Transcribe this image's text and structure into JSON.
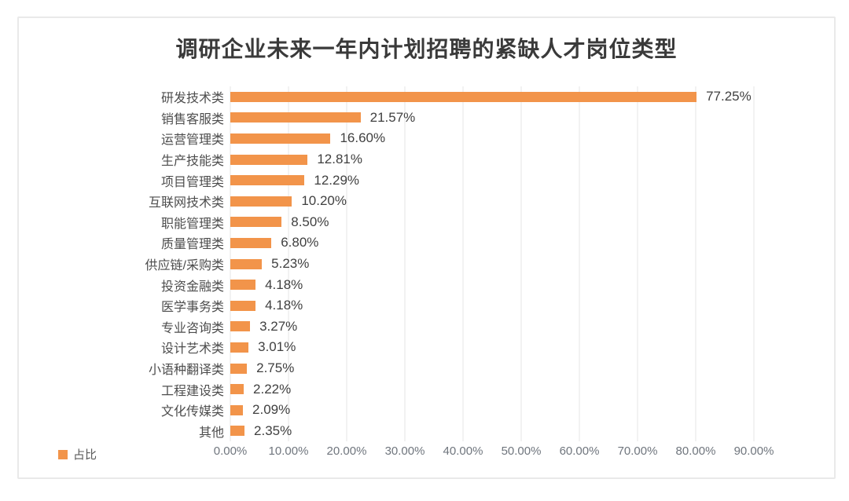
{
  "chart_data": {
    "type": "bar",
    "orientation": "horizontal",
    "title": "调研企业未来一年内计划招聘的紧缺人才岗位类型",
    "categories": [
      "研发技术类",
      "销售客服类",
      "运营管理类",
      "生产技能类",
      "项目管理类",
      "互联网技术类",
      "职能管理类",
      "质量管理类",
      "供应链/采购类",
      "投资金融类",
      "医学事务类",
      "专业咨询类",
      "设计艺术类",
      "小语种翻译类",
      "工程建设类",
      "文化传媒类",
      "其他"
    ],
    "values": [
      77.25,
      21.57,
      16.6,
      12.81,
      12.29,
      10.2,
      8.5,
      6.8,
      5.23,
      4.18,
      4.18,
      3.27,
      3.01,
      2.75,
      2.22,
      2.09,
      2.35
    ],
    "value_labels": [
      "77.25%",
      "21.57%",
      "16.60%",
      "12.81%",
      "12.29%",
      "10.20%",
      "8.50%",
      "6.80%",
      "5.23%",
      "4.18%",
      "4.18%",
      "3.27%",
      "3.01%",
      "2.75%",
      "2.22%",
      "2.09%",
      "2.35%"
    ],
    "series_name": "占比",
    "xlabel": "",
    "ylabel": "",
    "xlim": [
      0,
      90
    ],
    "x_ticks": [
      "0.00%",
      "10.00%",
      "20.00%",
      "30.00%",
      "40.00%",
      "50.00%",
      "60.00%",
      "70.00%",
      "80.00%",
      "90.00%"
    ],
    "grid": true,
    "legend_position": "bottom-left",
    "colors": {
      "bar": "#f2944a",
      "value_label": "#404040",
      "category_label": "#4d4d4d",
      "tick_label": "#6f757d",
      "gridline": "#e5e5e5",
      "title": "#3a3a3a",
      "card_border": "#e9e9e9",
      "background": "#ffffff"
    }
  },
  "legend": {
    "label": "占比",
    "swatch_color": "#f2944a"
  }
}
